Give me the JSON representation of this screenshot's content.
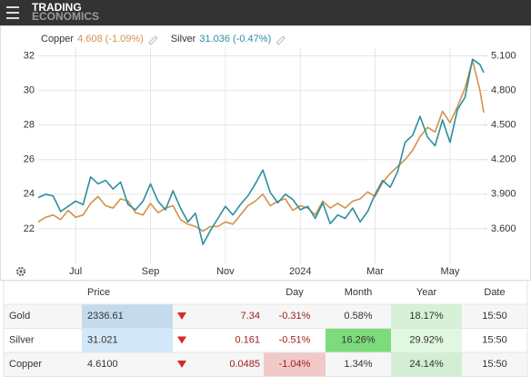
{
  "brand": {
    "line1": "TRADING",
    "line2": "ECONOMICS"
  },
  "chart_data": {
    "type": "line",
    "x": [
      0,
      0.2,
      0.4,
      0.6,
      0.8,
      1,
      1.2,
      1.4,
      1.6,
      1.8,
      2,
      2.2,
      2.4,
      2.6,
      2.8,
      3,
      3.2,
      3.4,
      3.6,
      3.8,
      4,
      4.2,
      4.4,
      4.6,
      4.8,
      5,
      5.2,
      5.4,
      5.6,
      5.8,
      6,
      6.2,
      6.4,
      6.6,
      6.8,
      7,
      7.2,
      7.4,
      7.6,
      7.8,
      8,
      8.2,
      8.4,
      8.6,
      8.8,
      9,
      9.2,
      9.4,
      9.6,
      9.8,
      10,
      10.2,
      10.4,
      10.6,
      10.8,
      11,
      11.2,
      11.4,
      11.6,
      11.8,
      11.9
    ],
    "xlim": [
      0,
      11.9
    ],
    "xticks": [
      {
        "value": 1,
        "label": "Jul"
      },
      {
        "value": 3,
        "label": "Sep"
      },
      {
        "value": 5,
        "label": "Nov"
      },
      {
        "value": 7,
        "label": "2024"
      },
      {
        "value": 9,
        "label": "Mar"
      },
      {
        "value": 11,
        "label": "May"
      }
    ],
    "ylim": [
      20,
      32.5
    ],
    "yticks": [
      22,
      24,
      26,
      28,
      30,
      32
    ],
    "y2lim": [
      3.3,
      5.175
    ],
    "y2ticks": [
      {
        "value": 3.6,
        "label": "3.600"
      },
      {
        "value": 3.9,
        "label": "3.900"
      },
      {
        "value": 4.2,
        "label": "4.200"
      },
      {
        "value": 4.5,
        "label": "4.500"
      },
      {
        "value": 4.8,
        "label": "4.800"
      },
      {
        "value": 5.1,
        "label": "5.100"
      }
    ],
    "grid": true,
    "series": [
      {
        "name": "Copper",
        "quote": "4.608 (-1.09%)",
        "color": "#d4914a",
        "axis": "y2",
        "values": [
          3.66,
          3.7,
          3.72,
          3.68,
          3.76,
          3.7,
          3.72,
          3.82,
          3.88,
          3.8,
          3.78,
          3.86,
          3.84,
          3.74,
          3.72,
          3.82,
          3.74,
          3.78,
          3.8,
          3.68,
          3.64,
          3.62,
          3.58,
          3.62,
          3.62,
          3.66,
          3.64,
          3.72,
          3.8,
          3.84,
          3.9,
          3.8,
          3.84,
          3.86,
          3.76,
          3.8,
          3.78,
          3.72,
          3.84,
          3.78,
          3.82,
          3.78,
          3.84,
          3.86,
          3.92,
          3.88,
          4.0,
          4.08,
          4.14,
          4.2,
          4.28,
          4.4,
          4.48,
          4.44,
          4.62,
          4.52,
          4.66,
          4.82,
          5.06,
          4.8,
          4.608
        ]
      },
      {
        "name": "Silver",
        "quote": "31.036 (-0.47%)",
        "color": "#2a8fa0",
        "axis": "y",
        "values": [
          23.8,
          24.0,
          23.9,
          23.0,
          23.3,
          23.6,
          23.4,
          25.0,
          24.6,
          24.8,
          24.3,
          24.7,
          23.4,
          23.1,
          23.6,
          24.6,
          23.6,
          23.1,
          24.2,
          23.2,
          22.4,
          22.9,
          21.1,
          21.9,
          22.6,
          23.3,
          22.8,
          23.4,
          23.9,
          24.6,
          25.4,
          24.1,
          23.5,
          24.0,
          23.7,
          23.1,
          23.3,
          22.6,
          23.5,
          22.3,
          22.8,
          22.6,
          23.2,
          22.4,
          23.0,
          24.0,
          24.8,
          24.4,
          25.3,
          27.0,
          27.4,
          28.5,
          27.3,
          26.8,
          28.3,
          27.0,
          28.9,
          29.6,
          31.8,
          31.5,
          31.036
        ]
      }
    ]
  },
  "table": {
    "headers": [
      "Price",
      "Day",
      "Month",
      "Year",
      "Date"
    ],
    "rows": [
      [
        "Gold",
        "2336.61",
        "7.34",
        "-0.31%",
        "0.58%",
        "18.17%",
        "15:50"
      ],
      [
        "Silver",
        "31.021",
        "0.161",
        "-0.51%",
        "16.26%",
        "29.92%",
        "15:50"
      ],
      [
        "Copper",
        "4.6100",
        "0.0485",
        "-1.04%",
        "1.34%",
        "24.14%",
        "15:50"
      ]
    ]
  }
}
